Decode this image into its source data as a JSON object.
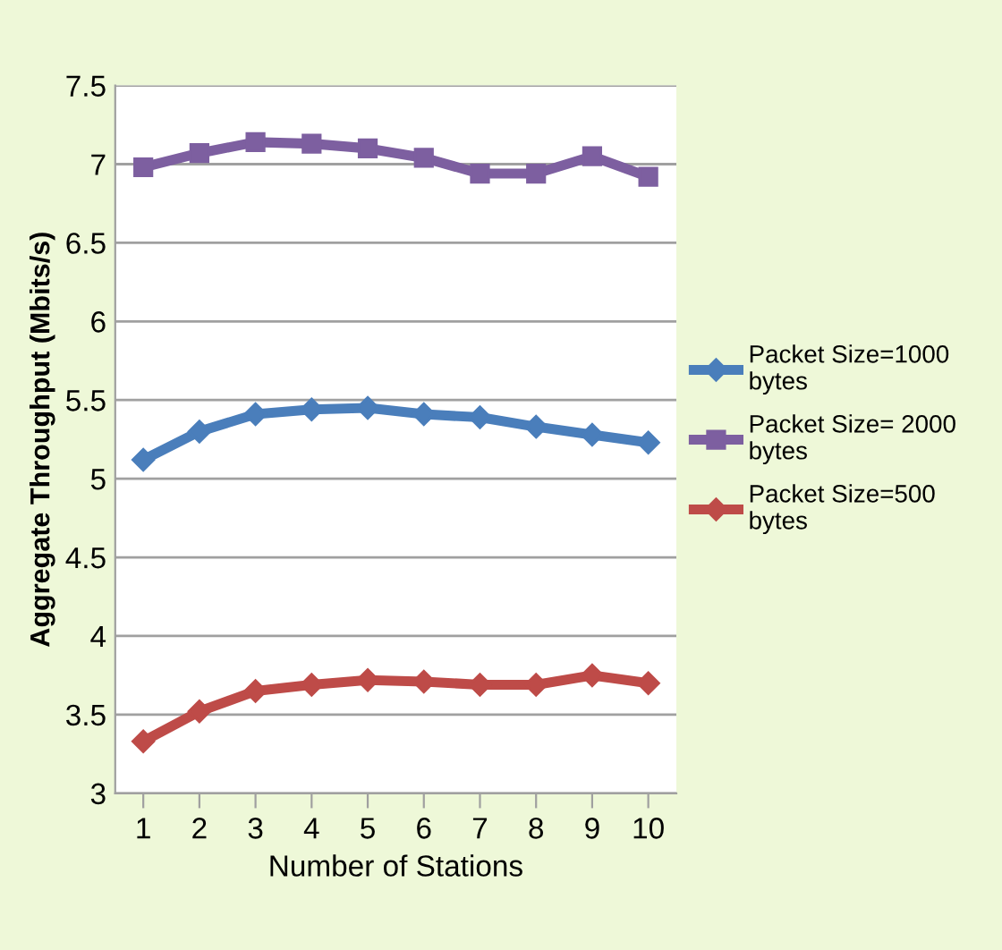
{
  "chart_data": {
    "type": "line",
    "xlabel": "Number of Stations",
    "ylabel": "Aggregate Throughput (Mbits/s)",
    "categories": [
      "1",
      "2",
      "3",
      "4",
      "5",
      "6",
      "7",
      "8",
      "9",
      "10"
    ],
    "ylim": [
      3,
      7.5
    ],
    "yticks": [
      3,
      3.5,
      4,
      4.5,
      5,
      5.5,
      6,
      6.5,
      7,
      7.5
    ],
    "grid": "y",
    "legend": "right",
    "series": [
      {
        "name": "Packet Size=1000 bytes",
        "color": "#4a7ebb",
        "marker": "diamond",
        "values": [
          5.12,
          5.3,
          5.41,
          5.44,
          5.45,
          5.41,
          5.39,
          5.33,
          5.28,
          5.23
        ]
      },
      {
        "name": "Packet Size= 2000 bytes",
        "color": "#7d5fa0",
        "marker": "square",
        "values": [
          6.98,
          7.07,
          7.14,
          7.13,
          7.1,
          7.04,
          6.94,
          6.94,
          7.05,
          6.92
        ]
      },
      {
        "name": "Packet Size=500 bytes",
        "color": "#be4b48",
        "marker": "diamond",
        "values": [
          3.33,
          3.52,
          3.65,
          3.69,
          3.72,
          3.71,
          3.69,
          3.69,
          3.75,
          3.7
        ]
      }
    ]
  }
}
